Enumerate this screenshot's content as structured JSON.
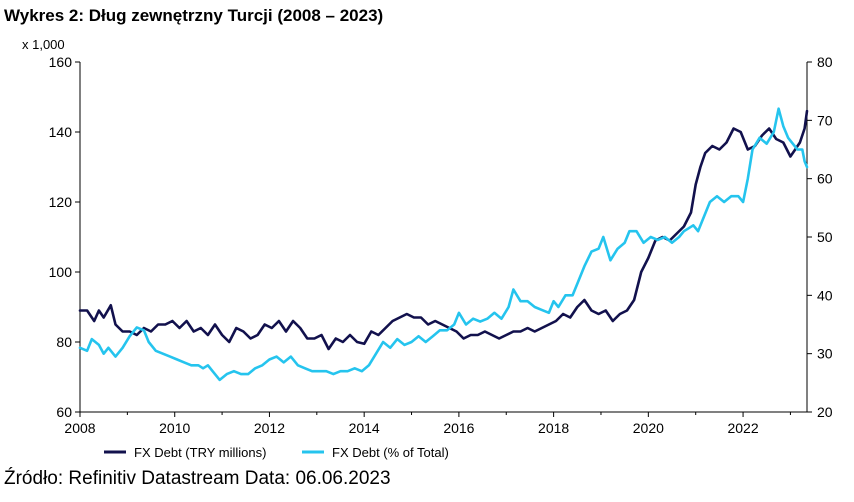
{
  "title": "Wykres 2: Dług zewnętrzny Turcji (2008 – 2023)",
  "source": "Źródło: Refinitiv Datastream Data: 06.06.2023",
  "chart_data": {
    "type": "line",
    "title": "Wykres 2: Dług zewnętrzny Turcji (2008 – 2023)",
    "left_axis": {
      "unit_label": "x 1,000",
      "ylim": [
        60,
        160
      ],
      "ticks": [
        60,
        80,
        100,
        120,
        140,
        160
      ]
    },
    "right_axis": {
      "ylim": [
        20,
        80
      ],
      "ticks": [
        20,
        30,
        40,
        50,
        60,
        70,
        80
      ]
    },
    "xlim": [
      2008,
      2023.35
    ],
    "x_ticks": [
      2008,
      2010,
      2012,
      2014,
      2016,
      2018,
      2020,
      2022
    ],
    "grid": false,
    "legend_position": "bottom",
    "series": [
      {
        "name": "FX Debt (TRY millions)",
        "axis": "left",
        "color": "#12114d",
        "points": [
          [
            2008.0,
            89
          ],
          [
            2008.15,
            89
          ],
          [
            2008.3,
            86
          ],
          [
            2008.4,
            89
          ],
          [
            2008.5,
            87
          ],
          [
            2008.65,
            90.5
          ],
          [
            2008.75,
            85
          ],
          [
            2008.9,
            83
          ],
          [
            2009.05,
            83
          ],
          [
            2009.2,
            82
          ],
          [
            2009.35,
            84
          ],
          [
            2009.5,
            83
          ],
          [
            2009.65,
            85
          ],
          [
            2009.8,
            85
          ],
          [
            2009.95,
            86
          ],
          [
            2010.1,
            84
          ],
          [
            2010.25,
            86
          ],
          [
            2010.4,
            83
          ],
          [
            2010.55,
            84
          ],
          [
            2010.7,
            82
          ],
          [
            2010.85,
            85
          ],
          [
            2011.0,
            82
          ],
          [
            2011.15,
            80
          ],
          [
            2011.3,
            84
          ],
          [
            2011.45,
            83
          ],
          [
            2011.6,
            81
          ],
          [
            2011.75,
            82
          ],
          [
            2011.9,
            85
          ],
          [
            2012.05,
            84
          ],
          [
            2012.2,
            86
          ],
          [
            2012.35,
            83
          ],
          [
            2012.5,
            86
          ],
          [
            2012.65,
            84
          ],
          [
            2012.8,
            81
          ],
          [
            2012.95,
            81
          ],
          [
            2013.1,
            82
          ],
          [
            2013.25,
            78
          ],
          [
            2013.4,
            81
          ],
          [
            2013.55,
            80
          ],
          [
            2013.7,
            82
          ],
          [
            2013.85,
            80
          ],
          [
            2014.0,
            79.5
          ],
          [
            2014.15,
            83
          ],
          [
            2014.3,
            82
          ],
          [
            2014.45,
            84
          ],
          [
            2014.6,
            86
          ],
          [
            2014.75,
            87
          ],
          [
            2014.9,
            88
          ],
          [
            2015.05,
            87
          ],
          [
            2015.2,
            87
          ],
          [
            2015.35,
            85
          ],
          [
            2015.5,
            86
          ],
          [
            2015.65,
            85
          ],
          [
            2015.8,
            84
          ],
          [
            2015.95,
            83
          ],
          [
            2016.1,
            81
          ],
          [
            2016.25,
            82
          ],
          [
            2016.4,
            82
          ],
          [
            2016.55,
            83
          ],
          [
            2016.7,
            82
          ],
          [
            2016.85,
            81
          ],
          [
            2017.0,
            82
          ],
          [
            2017.15,
            83
          ],
          [
            2017.3,
            83
          ],
          [
            2017.45,
            84
          ],
          [
            2017.6,
            83
          ],
          [
            2017.75,
            84
          ],
          [
            2017.9,
            85
          ],
          [
            2018.05,
            86
          ],
          [
            2018.2,
            88
          ],
          [
            2018.35,
            87
          ],
          [
            2018.5,
            90
          ],
          [
            2018.65,
            92
          ],
          [
            2018.8,
            89
          ],
          [
            2018.95,
            88
          ],
          [
            2019.1,
            89
          ],
          [
            2019.25,
            86
          ],
          [
            2019.4,
            88
          ],
          [
            2019.55,
            89
          ],
          [
            2019.7,
            92
          ],
          [
            2019.85,
            100
          ],
          [
            2020.0,
            104
          ],
          [
            2020.15,
            109
          ],
          [
            2020.3,
            110
          ],
          [
            2020.45,
            109
          ],
          [
            2020.6,
            111
          ],
          [
            2020.75,
            113
          ],
          [
            2020.9,
            117
          ],
          [
            2021.0,
            125
          ],
          [
            2021.1,
            130
          ],
          [
            2021.2,
            134
          ],
          [
            2021.35,
            136
          ],
          [
            2021.5,
            135
          ],
          [
            2021.65,
            137
          ],
          [
            2021.8,
            141
          ],
          [
            2021.95,
            140
          ],
          [
            2022.1,
            135
          ],
          [
            2022.25,
            136
          ],
          [
            2022.4,
            139
          ],
          [
            2022.55,
            141
          ],
          [
            2022.7,
            138
          ],
          [
            2022.85,
            137
          ],
          [
            2023.0,
            133
          ],
          [
            2023.1,
            135
          ],
          [
            2023.2,
            137
          ],
          [
            2023.3,
            141
          ],
          [
            2023.35,
            146
          ]
        ]
      },
      {
        "name": "FX Debt (% of Total)",
        "axis": "right",
        "color": "#25c4ee",
        "points": [
          [
            2008.0,
            31
          ],
          [
            2008.15,
            30.5
          ],
          [
            2008.25,
            32.5
          ],
          [
            2008.4,
            31.5
          ],
          [
            2008.5,
            30
          ],
          [
            2008.6,
            31
          ],
          [
            2008.75,
            29.5
          ],
          [
            2008.9,
            31
          ],
          [
            2009.05,
            33
          ],
          [
            2009.2,
            34.5
          ],
          [
            2009.35,
            34
          ],
          [
            2009.45,
            32
          ],
          [
            2009.6,
            30.5
          ],
          [
            2009.75,
            30
          ],
          [
            2009.9,
            29.5
          ],
          [
            2010.05,
            29
          ],
          [
            2010.2,
            28.5
          ],
          [
            2010.35,
            28
          ],
          [
            2010.5,
            28
          ],
          [
            2010.6,
            27.5
          ],
          [
            2010.7,
            28
          ],
          [
            2010.8,
            27
          ],
          [
            2010.95,
            25.5
          ],
          [
            2011.1,
            26.5
          ],
          [
            2011.25,
            27
          ],
          [
            2011.4,
            26.5
          ],
          [
            2011.55,
            26.5
          ],
          [
            2011.7,
            27.5
          ],
          [
            2011.85,
            28
          ],
          [
            2012.0,
            29
          ],
          [
            2012.15,
            29.5
          ],
          [
            2012.3,
            28.5
          ],
          [
            2012.45,
            29.5
          ],
          [
            2012.6,
            28
          ],
          [
            2012.75,
            27.5
          ],
          [
            2012.9,
            27
          ],
          [
            2013.05,
            27
          ],
          [
            2013.2,
            27
          ],
          [
            2013.35,
            26.5
          ],
          [
            2013.5,
            27
          ],
          [
            2013.65,
            27
          ],
          [
            2013.8,
            27.5
          ],
          [
            2013.95,
            27
          ],
          [
            2014.1,
            28
          ],
          [
            2014.25,
            30
          ],
          [
            2014.4,
            32
          ],
          [
            2014.55,
            31
          ],
          [
            2014.7,
            32.5
          ],
          [
            2014.85,
            31.5
          ],
          [
            2015.0,
            32
          ],
          [
            2015.15,
            33
          ],
          [
            2015.3,
            32
          ],
          [
            2015.45,
            33
          ],
          [
            2015.6,
            34
          ],
          [
            2015.75,
            34
          ],
          [
            2015.9,
            35
          ],
          [
            2016.0,
            37
          ],
          [
            2016.15,
            35
          ],
          [
            2016.3,
            36
          ],
          [
            2016.45,
            35.5
          ],
          [
            2016.6,
            36
          ],
          [
            2016.75,
            37
          ],
          [
            2016.9,
            36
          ],
          [
            2017.05,
            38
          ],
          [
            2017.15,
            41
          ],
          [
            2017.3,
            39
          ],
          [
            2017.45,
            39
          ],
          [
            2017.6,
            38
          ],
          [
            2017.75,
            37.5
          ],
          [
            2017.9,
            37
          ],
          [
            2018.0,
            39
          ],
          [
            2018.1,
            38
          ],
          [
            2018.25,
            40
          ],
          [
            2018.4,
            40
          ],
          [
            2018.5,
            42
          ],
          [
            2018.65,
            45
          ],
          [
            2018.8,
            47.5
          ],
          [
            2018.95,
            48
          ],
          [
            2019.05,
            50
          ],
          [
            2019.2,
            46
          ],
          [
            2019.35,
            48
          ],
          [
            2019.5,
            49
          ],
          [
            2019.6,
            51
          ],
          [
            2019.75,
            51
          ],
          [
            2019.9,
            49
          ],
          [
            2020.05,
            50
          ],
          [
            2020.2,
            49.5
          ],
          [
            2020.35,
            50
          ],
          [
            2020.5,
            49
          ],
          [
            2020.65,
            50
          ],
          [
            2020.75,
            51
          ],
          [
            2020.85,
            51.5
          ],
          [
            2020.95,
            52
          ],
          [
            2021.05,
            51
          ],
          [
            2021.15,
            53
          ],
          [
            2021.3,
            56
          ],
          [
            2021.45,
            57
          ],
          [
            2021.6,
            56
          ],
          [
            2021.75,
            57
          ],
          [
            2021.9,
            57
          ],
          [
            2022.0,
            56
          ],
          [
            2022.1,
            60
          ],
          [
            2022.2,
            65
          ],
          [
            2022.35,
            67
          ],
          [
            2022.5,
            66
          ],
          [
            2022.65,
            68
          ],
          [
            2022.75,
            72
          ],
          [
            2022.85,
            69
          ],
          [
            2022.95,
            67
          ],
          [
            2023.05,
            66
          ],
          [
            2023.15,
            65
          ],
          [
            2023.25,
            65
          ],
          [
            2023.3,
            63
          ],
          [
            2023.35,
            62
          ]
        ]
      }
    ]
  }
}
